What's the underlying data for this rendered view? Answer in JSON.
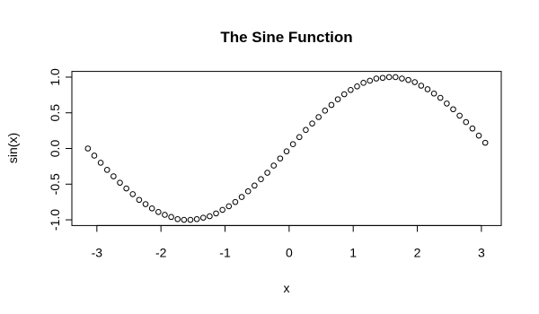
{
  "chart_data": {
    "type": "scatter",
    "title": "The Sine Function",
    "x_label": "x",
    "y_label": "sin(x)",
    "series": [
      {
        "name": "sin(x)",
        "color": "#000000",
        "x": [
          -3.14,
          -3.04,
          -2.94,
          -2.84,
          -2.74,
          -2.64,
          -2.54,
          -2.44,
          -2.34,
          -2.24,
          -2.14,
          -2.04,
          -1.94,
          -1.84,
          -1.74,
          -1.64,
          -1.54,
          -1.44,
          -1.34,
          -1.24,
          -1.14,
          -1.04,
          -0.94,
          -0.84,
          -0.74,
          -0.64,
          -0.54,
          -0.44,
          -0.34,
          -0.24,
          -0.14,
          -0.04,
          0.06,
          0.16,
          0.26,
          0.36,
          0.46,
          0.56,
          0.66,
          0.76,
          0.86,
          0.96,
          1.06,
          1.16,
          1.26,
          1.36,
          1.46,
          1.56,
          1.66,
          1.76,
          1.86,
          1.96,
          2.06,
          2.16,
          2.26,
          2.36,
          2.46,
          2.56,
          2.66,
          2.76,
          2.86,
          2.96,
          3.06
        ],
        "values": [
          0,
          -0.1,
          -0.2,
          -0.3,
          -0.39,
          -0.48,
          -0.56,
          -0.64,
          -0.72,
          -0.78,
          -0.84,
          -0.89,
          -0.93,
          -0.96,
          -0.99,
          -1.0,
          -1.0,
          -0.99,
          -0.97,
          -0.95,
          -0.91,
          -0.86,
          -0.81,
          -0.75,
          -0.68,
          -0.6,
          -0.52,
          -0.43,
          -0.34,
          -0.24,
          -0.14,
          -0.04,
          0.06,
          0.16,
          0.26,
          0.35,
          0.44,
          0.53,
          0.61,
          0.69,
          0.76,
          0.82,
          0.87,
          0.92,
          0.95,
          0.98,
          0.99,
          1.0,
          1.0,
          0.98,
          0.96,
          0.93,
          0.88,
          0.83,
          0.77,
          0.71,
          0.63,
          0.55,
          0.46,
          0.37,
          0.28,
          0.18,
          0.08
        ]
      }
    ],
    "xlim": [
      -3.39,
      3.31
    ],
    "ylim": [
      -1.08,
      1.08
    ],
    "xticks": [
      -3,
      -2,
      -1,
      0,
      1,
      2,
      3
    ],
    "yticks": [
      {
        "value": -1,
        "label": "-1.0"
      },
      -0.5,
      {
        "value": 0,
        "label": "0.0"
      },
      0.5,
      {
        "value": 1,
        "label": "1.0"
      }
    ],
    "grid": false
  }
}
